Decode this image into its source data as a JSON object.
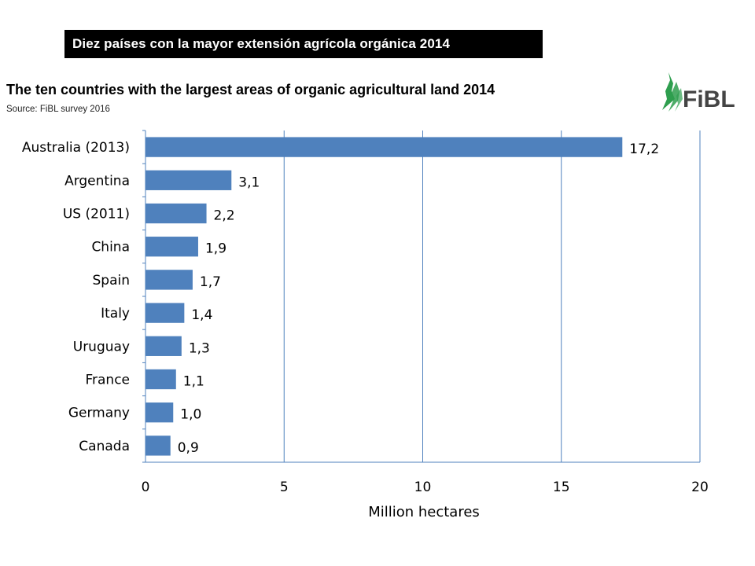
{
  "header": {
    "banner": "Diez países con la mayor extensión agrícola orgánica 2014",
    "logo_text": "FiBL"
  },
  "colors": {
    "bar": "#4f81bd",
    "grid": "#4f81bd",
    "banner_bg": "#000000",
    "logo_green": "#2e9e4e"
  },
  "chart_data": {
    "type": "bar",
    "orientation": "horizontal",
    "title": "The ten countries with the largest areas of organic agricultural land 2014",
    "subtitle": "Source: FiBL survey 2016",
    "categories": [
      "Australia (2013)",
      "Argentina",
      "US (2011)",
      "China",
      "Spain",
      "Italy",
      "Uruguay",
      "France",
      "Germany",
      "Canada"
    ],
    "values": [
      17.2,
      3.1,
      2.2,
      1.9,
      1.7,
      1.4,
      1.3,
      1.1,
      1.0,
      0.9
    ],
    "value_labels": [
      "17,2",
      "3,1",
      "2,2",
      "1,9",
      "1,7",
      "1,4",
      "1,3",
      "1,1",
      "1,0",
      "0,9"
    ],
    "xlabel": "Million hectares",
    "ylabel": "",
    "xlim": [
      0,
      20
    ],
    "xticks": [
      0,
      5,
      10,
      15,
      20
    ],
    "grid": true,
    "legend": "none"
  }
}
